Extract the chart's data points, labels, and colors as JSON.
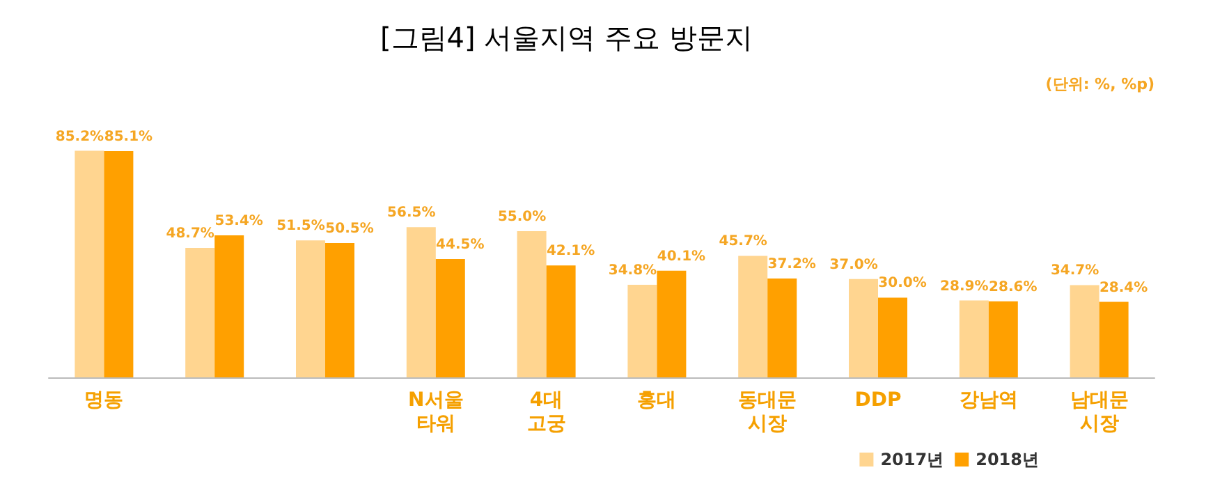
{
  "chart_data": {
    "type": "bar",
    "title": "[그림4] 서울지역 주요 방문지",
    "annotations": [
      "(단위: %, %p)"
    ],
    "categories": [
      "명동",
      null,
      null,
      "N서울\n타워",
      "4대\n고궁",
      "홍대",
      "동대문\n시장",
      "DDP",
      "강남역",
      "남대문\n시장"
    ],
    "series": [
      {
        "name": "2017년",
        "color": "#ffd590",
        "values": [
          85.2,
          48.7,
          51.5,
          56.5,
          55.0,
          34.8,
          45.7,
          37.0,
          28.9,
          34.7
        ],
        "value_labels": [
          "85.2%",
          "48.7%",
          "51.5%",
          "56.5%",
          "55.0%",
          "34.8%",
          "45.7%",
          "37.0%",
          "28.9%",
          "34.7%"
        ]
      },
      {
        "name": "2018년",
        "color": "#ffa000",
        "values": [
          85.1,
          53.4,
          50.5,
          44.5,
          42.1,
          40.1,
          37.2,
          30.0,
          28.6,
          28.4
        ],
        "value_labels": [
          "85.1%",
          "53.4%",
          "50.5%",
          "44.5%",
          "42.1%",
          "40.1%",
          "37.2%",
          "30.0%",
          "28.6%",
          "28.4%"
        ]
      }
    ],
    "legend": "bottom right"
  }
}
